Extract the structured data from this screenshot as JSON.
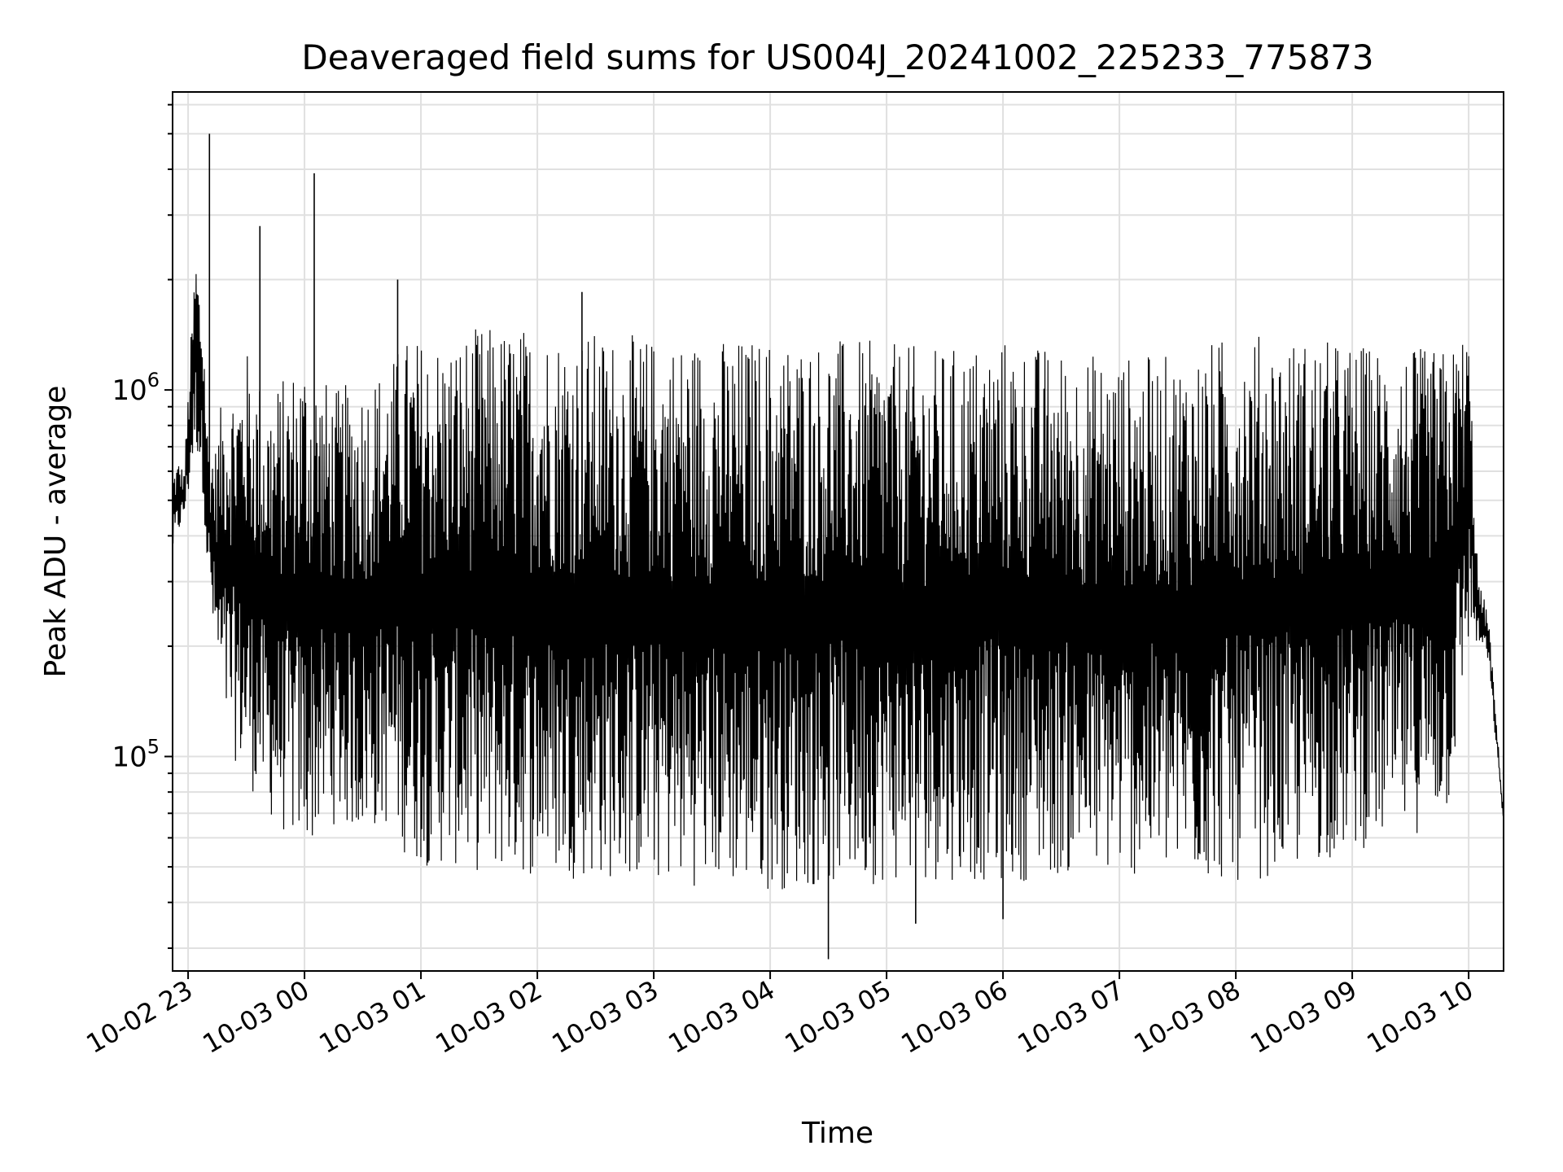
{
  "chart_data": {
    "type": "line",
    "title": "Deaveraged field sums for US004J_20241002_225233_775873",
    "xlabel": "Time",
    "ylabel": "Peak ADU - average",
    "yscale": "log",
    "ylim": [
      26000,
      6500000
    ],
    "xlim": [
      "2024-10-02 22:52",
      "2024-10-03 10:18"
    ],
    "x_ticks": [
      {
        "t": "2024-10-02 23:00",
        "label": "10-02 23"
      },
      {
        "t": "2024-10-03 00:00",
        "label": "10-03 00"
      },
      {
        "t": "2024-10-03 01:00",
        "label": "10-03 01"
      },
      {
        "t": "2024-10-03 02:00",
        "label": "10-03 02"
      },
      {
        "t": "2024-10-03 03:00",
        "label": "10-03 03"
      },
      {
        "t": "2024-10-03 04:00",
        "label": "10-03 04"
      },
      {
        "t": "2024-10-03 05:00",
        "label": "10-03 05"
      },
      {
        "t": "2024-10-03 06:00",
        "label": "10-03 06"
      },
      {
        "t": "2024-10-03 07:00",
        "label": "10-03 07"
      },
      {
        "t": "2024-10-03 08:00",
        "label": "10-03 08"
      },
      {
        "t": "2024-10-03 09:00",
        "label": "10-03 09"
      },
      {
        "t": "2024-10-03 10:00",
        "label": "10-03 10"
      }
    ],
    "y_ticks": [
      {
        "value": 100000,
        "base": "10",
        "exp": "5"
      },
      {
        "value": 1000000,
        "base": "10",
        "exp": "6"
      }
    ],
    "grid": true,
    "line_color": "#000000",
    "series": [
      {
        "x": [
          "2024-10-02 22:52",
          "2024-10-02 22:55",
          "2024-10-02 22:58",
          "2024-10-02 23:00",
          "2024-10-02 23:04",
          "2024-10-02 23:08",
          "2024-10-02 23:10",
          "2024-10-02 23:14",
          "2024-10-02 23:18",
          "2024-10-02 23:25",
          "2024-10-02 23:30",
          "2024-10-02 23:40",
          "2024-10-02 23:50",
          "2024-10-03 00:00",
          "2024-10-03 00:15",
          "2024-10-03 00:30",
          "2024-10-03 00:45",
          "2024-10-03 00:50",
          "2024-10-03 01:00",
          "2024-10-03 01:15",
          "2024-10-03 01:30",
          "2024-10-03 02:00",
          "2024-10-03 02:30",
          "2024-10-03 03:00",
          "2024-10-03 03:30",
          "2024-10-03 04:00",
          "2024-10-03 04:30",
          "2024-10-03 05:00",
          "2024-10-03 05:30",
          "2024-10-03 06:00",
          "2024-10-03 06:30",
          "2024-10-03 07:00",
          "2024-10-03 07:30",
          "2024-10-03 08:00",
          "2024-10-03 08:30",
          "2024-10-03 09:00",
          "2024-10-03 09:30",
          "2024-10-03 09:50",
          "2024-10-03 10:00",
          "2024-10-03 10:05",
          "2024-10-03 10:10",
          "2024-10-03 10:18"
        ],
        "upper": [
          600000,
          650000,
          600000,
          1000000,
          2500000,
          1500000,
          800000,
          700000,
          1000000,
          1100000,
          1300000,
          1000000,
          1100000,
          1300000,
          1000000,
          1100000,
          1200000,
          1400000,
          1400000,
          1400000,
          1500000,
          1500000,
          1450000,
          1400000,
          1400000,
          1400000,
          1400000,
          1350000,
          1300000,
          1400000,
          1300000,
          1250000,
          1250000,
          1450000,
          1400000,
          1350000,
          1300000,
          1300000,
          1500000,
          300000,
          250000,
          70000
        ],
        "lower": [
          350000,
          400000,
          450000,
          500000,
          700000,
          500000,
          300000,
          180000,
          120000,
          95000,
          85000,
          70000,
          60000,
          55000,
          65000,
          60000,
          65000,
          55000,
          50000,
          50000,
          48000,
          47000,
          46000,
          45000,
          44000,
          43000,
          44000,
          45000,
          46000,
          45000,
          47000,
          47000,
          46000,
          45000,
          48000,
          55000,
          60000,
          70000,
          200000,
          200000,
          180000,
          65000
        ]
      }
    ],
    "spikes": [
      {
        "t": "2024-10-02 23:11",
        "value": 5000000
      },
      {
        "t": "2024-10-02 23:37",
        "value": 2800000
      },
      {
        "t": "2024-10-03 00:05",
        "value": 3900000
      },
      {
        "t": "2024-10-03 00:48",
        "value": 2000000
      },
      {
        "t": "2024-10-03 02:23",
        "value": 1850000
      },
      {
        "t": "2024-10-03 04:30",
        "value": 28000
      },
      {
        "t": "2024-10-03 05:15",
        "value": 35000
      },
      {
        "t": "2024-10-03 06:00",
        "value": 36000
      }
    ]
  }
}
